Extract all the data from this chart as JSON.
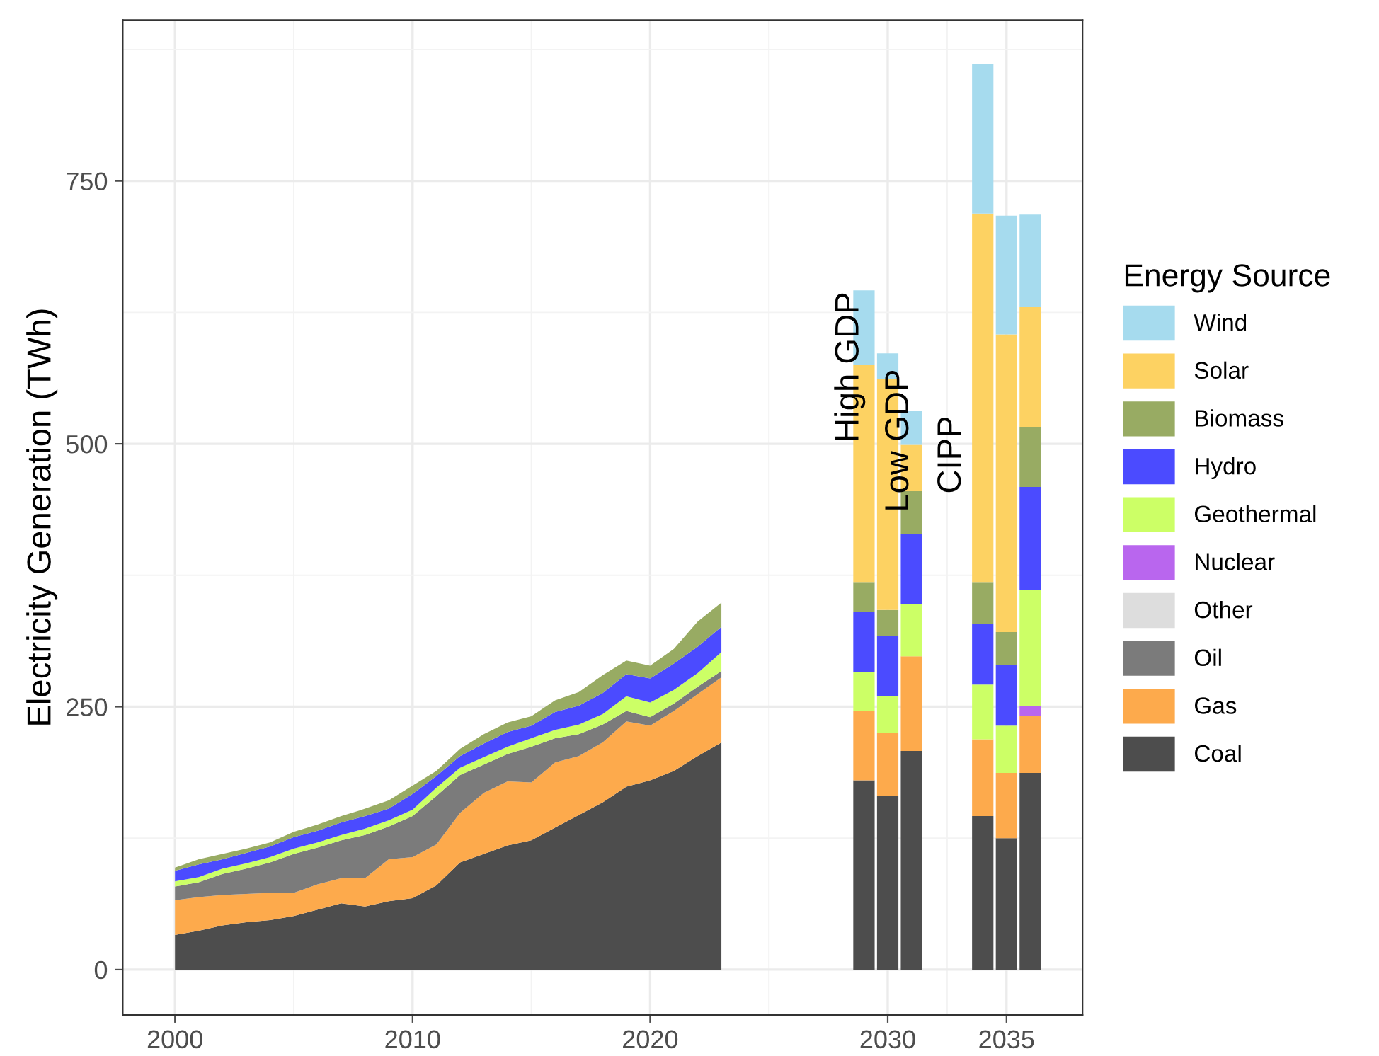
{
  "chart_data": {
    "type": "bar",
    "stacked": true,
    "ylabel": "Electricity Generation (TWh)",
    "legend_title": "Energy Source",
    "legend": "right",
    "grid": true,
    "xlim": [
      1997.8,
      2038.2
    ],
    "xticks": [
      2000,
      2010,
      2020,
      2030,
      2035
    ],
    "ylim": [
      -43,
      903
    ],
    "yticks": [
      0,
      250,
      500,
      750
    ],
    "x": [
      2000,
      2001,
      2002,
      2003,
      2004,
      2005,
      2006,
      2007,
      2008,
      2009,
      2010,
      2011,
      2012,
      2013,
      2014,
      2015,
      2016,
      2017,
      2018,
      2019,
      2020,
      2021,
      2022,
      2023,
      2029,
      2030,
      2031,
      2034,
      2035,
      2036
    ],
    "series": [
      {
        "type": "area",
        "color": "#4d4d4d",
        "values": [
          33,
          37,
          42,
          45,
          47,
          51,
          57,
          63,
          60,
          65,
          68,
          80,
          102,
          110,
          118,
          123,
          135,
          147,
          159,
          174,
          180,
          189,
          203,
          216,
          null,
          null,
          null,
          null,
          null,
          null
        ]
      },
      {
        "type": "area",
        "color": "#fdaa4c",
        "values": [
          33,
          32,
          29,
          27,
          26,
          22,
          24,
          24,
          27,
          40,
          39,
          39,
          47,
          58,
          61,
          55,
          62,
          56,
          57,
          62,
          52,
          57,
          59,
          62,
          null,
          null,
          null,
          null,
          null,
          null
        ]
      },
      {
        "type": "area",
        "color": "#7b7b7b",
        "values": [
          13,
          14,
          20,
          24,
          29,
          37,
          35,
          36,
          41,
          31,
          39,
          46,
          36,
          27,
          26,
          34,
          23,
          21,
          17,
          10,
          8,
          7,
          7,
          6,
          null,
          null,
          null,
          null,
          null,
          null
        ]
      },
      {
        "type": "area",
        "color": "#ccff66",
        "values": [
          5,
          5,
          5,
          5,
          5,
          5,
          5,
          5,
          6,
          6,
          6,
          8,
          7,
          7,
          7,
          8,
          8,
          9,
          10,
          14,
          14,
          13,
          13,
          18,
          null,
          null,
          null,
          null,
          null,
          null
        ]
      },
      {
        "type": "area",
        "color": "#4b4bff",
        "values": [
          10,
          12,
          9,
          10,
          10,
          11,
          11,
          12,
          12,
          11,
          15,
          11,
          11,
          13,
          14,
          12,
          17,
          18,
          20,
          21,
          23,
          25,
          25,
          24,
          null,
          null,
          null,
          null,
          null,
          null
        ]
      },
      {
        "type": "area",
        "color": "#98ab63",
        "values": [
          3,
          5,
          5,
          4,
          4,
          5,
          6,
          6,
          7,
          8,
          8,
          5,
          7,
          9,
          9,
          9,
          11,
          13,
          17,
          13,
          12,
          14,
          24,
          23,
          null,
          null,
          null,
          null,
          null,
          null
        ]
      },
      {
        "name": "Coal",
        "color": "#4d4d4d",
        "values": [
          null,
          null,
          null,
          null,
          null,
          null,
          null,
          null,
          null,
          null,
          null,
          null,
          null,
          null,
          null,
          null,
          null,
          null,
          null,
          null,
          null,
          null,
          null,
          null,
          180,
          165,
          208,
          146,
          125,
          187
        ]
      },
      {
        "name": "Gas",
        "color": "#fdaa4c",
        "values": [
          null,
          null,
          null,
          null,
          null,
          null,
          null,
          null,
          null,
          null,
          null,
          null,
          null,
          null,
          null,
          null,
          null,
          null,
          null,
          null,
          null,
          null,
          null,
          null,
          66,
          60,
          90,
          73,
          62,
          54
        ]
      },
      {
        "name": "Oil",
        "color": "#7b7b7b",
        "values": [
          null,
          null,
          null,
          null,
          null,
          null,
          null,
          null,
          null,
          null,
          null,
          null,
          null,
          null,
          null,
          null,
          null,
          null,
          null,
          null,
          null,
          null,
          null,
          null,
          0,
          0,
          0,
          0,
          0,
          0
        ]
      },
      {
        "name": "Other",
        "color": "#dddddd",
        "values": [
          null,
          null,
          null,
          null,
          null,
          null,
          null,
          null,
          null,
          null,
          null,
          null,
          null,
          null,
          null,
          null,
          null,
          null,
          null,
          null,
          null,
          null,
          null,
          null,
          0,
          0,
          0,
          0,
          0,
          0
        ]
      },
      {
        "name": "Nuclear",
        "color": "#b966ee",
        "values": [
          null,
          null,
          null,
          null,
          null,
          null,
          null,
          null,
          null,
          null,
          null,
          null,
          null,
          null,
          null,
          null,
          null,
          null,
          null,
          null,
          null,
          null,
          null,
          null,
          0,
          0,
          0,
          0,
          0,
          10
        ]
      },
      {
        "name": "Geothermal",
        "color": "#ccff66",
        "values": [
          null,
          null,
          null,
          null,
          null,
          null,
          null,
          null,
          null,
          null,
          null,
          null,
          null,
          null,
          null,
          null,
          null,
          null,
          null,
          null,
          null,
          null,
          null,
          null,
          37,
          35,
          50,
          52,
          45,
          110
        ]
      },
      {
        "name": "Hydro",
        "color": "#4b4bff",
        "values": [
          null,
          null,
          null,
          null,
          null,
          null,
          null,
          null,
          null,
          null,
          null,
          null,
          null,
          null,
          null,
          null,
          null,
          null,
          null,
          null,
          null,
          null,
          null,
          null,
          57,
          57,
          66,
          58,
          58,
          98
        ]
      },
      {
        "name": "Biomass",
        "color": "#98ab63",
        "values": [
          null,
          null,
          null,
          null,
          null,
          null,
          null,
          null,
          null,
          null,
          null,
          null,
          null,
          null,
          null,
          null,
          null,
          null,
          null,
          null,
          null,
          null,
          null,
          null,
          28,
          25,
          41,
          39,
          31,
          57
        ]
      },
      {
        "name": "Solar",
        "color": "#fdd262",
        "values": [
          null,
          null,
          null,
          null,
          null,
          null,
          null,
          null,
          null,
          null,
          null,
          null,
          null,
          null,
          null,
          null,
          null,
          null,
          null,
          null,
          null,
          null,
          null,
          null,
          207,
          220,
          44,
          351,
          283,
          114
        ]
      },
      {
        "name": "Wind",
        "color": "#a6dbee",
        "values": [
          null,
          null,
          null,
          null,
          null,
          null,
          null,
          null,
          null,
          null,
          null,
          null,
          null,
          null,
          null,
          null,
          null,
          null,
          null,
          null,
          null,
          null,
          null,
          null,
          71,
          24,
          32,
          142,
          113,
          88
        ]
      }
    ],
    "annotations": [
      {
        "text": "High GDP",
        "x": 2028.4,
        "y": 573
      },
      {
        "text": "Low GDP",
        "x": 2030.5,
        "y": 503
      },
      "CIPP"
    ]
  }
}
